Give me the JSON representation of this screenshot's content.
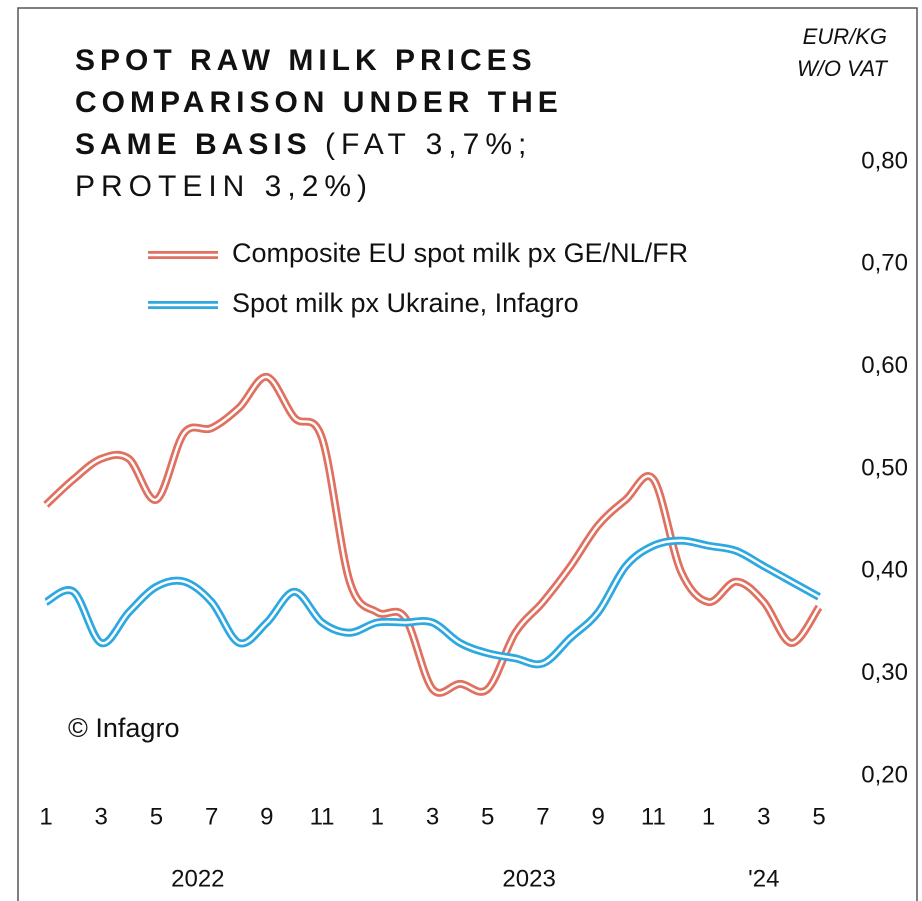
{
  "chart_data": {
    "type": "line",
    "title": "SPOT RAW MILK PRICES COMPARISON UNDER THE SAME BASIS",
    "subtitle": "(FAT 3,7%; PROTEIN 3,2%)",
    "y_axis_label": [
      "EUR/KG",
      "W/O VAT"
    ],
    "annotation": "© Infagro",
    "categories": [
      "1",
      null,
      "3",
      null,
      "5",
      null,
      "7",
      null,
      "9",
      null,
      "11",
      null,
      "1",
      null,
      "3",
      null,
      "5",
      null,
      "7",
      null,
      "9",
      null,
      "11",
      null,
      "1",
      null,
      "3",
      null,
      "5"
    ],
    "years": [
      "2022",
      "2023",
      "'24"
    ],
    "series": [
      {
        "name": "Composite EU spot milk px GE/NL/FR",
        "color": "#e07060",
        "values": [
          0.465,
          0.49,
          0.51,
          0.51,
          0.47,
          0.535,
          0.54,
          0.56,
          0.59,
          0.55,
          0.53,
          0.39,
          0.36,
          0.355,
          0.285,
          0.29,
          0.285,
          0.34,
          0.37,
          0.405,
          0.445,
          0.47,
          0.49,
          0.4,
          0.37,
          0.39,
          0.37,
          0.33,
          0.365
        ]
      },
      {
        "name": "Spot milk px Ukraine, Infagro",
        "color": "#2ea8e0",
        "values": [
          0.37,
          0.38,
          0.33,
          0.36,
          0.385,
          0.39,
          0.37,
          0.33,
          0.35,
          0.38,
          0.35,
          0.34,
          0.35,
          0.35,
          0.35,
          0.33,
          0.32,
          0.315,
          0.31,
          0.335,
          0.36,
          0.405,
          0.425,
          0.43,
          0.425,
          0.42,
          0.405,
          0.39,
          0.375
        ]
      }
    ],
    "ylim": [
      0.2,
      0.8
    ],
    "yticks": [
      {
        "value": 0.2,
        "label": "0,20"
      },
      {
        "value": 0.3,
        "label": "0,30"
      },
      {
        "value": 0.4,
        "label": "0,40"
      },
      {
        "value": 0.5,
        "label": "0,50"
      },
      {
        "value": 0.6,
        "label": "0,60"
      },
      {
        "value": 0.7,
        "label": "0,70"
      },
      {
        "value": 0.8,
        "label": "0,80"
      }
    ],
    "grid": false
  }
}
